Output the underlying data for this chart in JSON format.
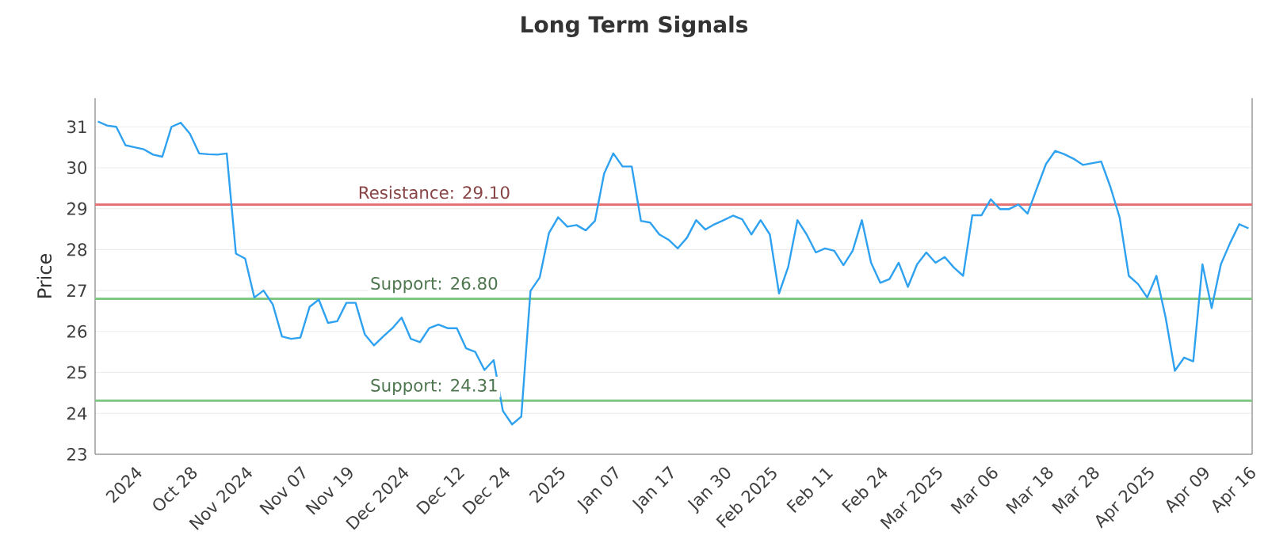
{
  "chart_data": {
    "type": "line",
    "title": "Long Term Signals",
    "ylabel": "Price",
    "categories": [
      null,
      null,
      null,
      null,
      "2024",
      null,
      null,
      null,
      null,
      null,
      "Oct 28",
      null,
      null,
      null,
      null,
      null,
      "Nov 2024",
      null,
      null,
      null,
      null,
      null,
      "Nov 07",
      null,
      null,
      null,
      null,
      "Nov 19",
      null,
      null,
      null,
      null,
      null,
      "Dec 2024",
      null,
      null,
      null,
      null,
      null,
      "Dec 12",
      null,
      null,
      null,
      null,
      "Dec 24",
      null,
      null,
      null,
      null,
      null,
      "2025",
      null,
      null,
      null,
      null,
      null,
      "Jan 07",
      null,
      null,
      null,
      null,
      null,
      "Jan 17",
      null,
      null,
      null,
      null,
      null,
      "Jan 30",
      null,
      null,
      null,
      null,
      "Feb 2025",
      null,
      null,
      null,
      null,
      null,
      "Feb 11",
      null,
      null,
      null,
      null,
      null,
      "Feb 24",
      null,
      null,
      null,
      null,
      null,
      "Mar 2025",
      null,
      null,
      null,
      null,
      null,
      "Mar 06",
      null,
      null,
      null,
      null,
      null,
      "Mar 18",
      null,
      null,
      null,
      null,
      "Mar 28",
      null,
      null,
      null,
      null,
      null,
      "Apr 2025",
      null,
      null,
      null,
      null,
      null,
      "Apr 09",
      null,
      null,
      null,
      null,
      "Apr 16"
    ],
    "values": [
      31.13,
      31.03,
      31.0,
      30.55,
      30.5,
      30.45,
      30.32,
      30.27,
      31.0,
      31.1,
      30.83,
      30.35,
      30.33,
      30.32,
      30.35,
      27.9,
      27.78,
      26.83,
      27.0,
      26.66,
      25.88,
      25.82,
      25.85,
      26.6,
      26.78,
      26.21,
      26.25,
      26.7,
      26.7,
      25.93,
      25.66,
      25.88,
      26.08,
      26.34,
      25.82,
      25.74,
      26.08,
      26.17,
      26.08,
      26.08,
      25.59,
      25.5,
      25.06,
      25.3,
      24.06,
      23.73,
      23.92,
      26.99,
      27.32,
      28.4,
      28.79,
      28.56,
      28.6,
      28.47,
      28.7,
      29.86,
      30.35,
      30.03,
      30.03,
      28.7,
      28.66,
      28.37,
      28.24,
      28.03,
      28.29,
      28.72,
      28.49,
      28.62,
      28.72,
      28.83,
      28.74,
      28.37,
      28.72,
      28.37,
      26.93,
      27.58,
      28.72,
      28.37,
      27.93,
      28.03,
      27.97,
      27.62,
      27.97,
      28.72,
      27.68,
      27.19,
      27.28,
      27.68,
      27.09,
      27.64,
      27.93,
      27.68,
      27.82,
      27.56,
      27.36,
      28.84,
      28.84,
      29.23,
      28.99,
      28.99,
      29.1,
      28.88,
      29.49,
      30.09,
      30.41,
      30.33,
      30.22,
      30.07,
      30.11,
      30.15,
      29.53,
      28.79,
      27.36,
      27.16,
      26.83,
      27.36,
      26.34,
      25.04,
      25.36,
      25.27,
      27.64,
      26.57,
      27.64,
      28.16,
      28.62,
      28.52
    ],
    "color": "#2ea1f0",
    "ylim": [
      23,
      31.7
    ],
    "yticks": [
      23,
      24,
      25,
      26,
      27,
      28,
      29,
      30,
      31
    ],
    "grid": "y",
    "ref_lines": [
      {
        "axis": "y",
        "value": 29.1,
        "label": "Resistance: 29.10",
        "color": "#e57373"
      },
      {
        "axis": "y",
        "value": 26.8,
        "label": "Support: 26.80",
        "color": "#81c784"
      },
      {
        "axis": "y",
        "value": 24.31,
        "label": "Support: 24.31",
        "color": "#81c784"
      }
    ]
  }
}
